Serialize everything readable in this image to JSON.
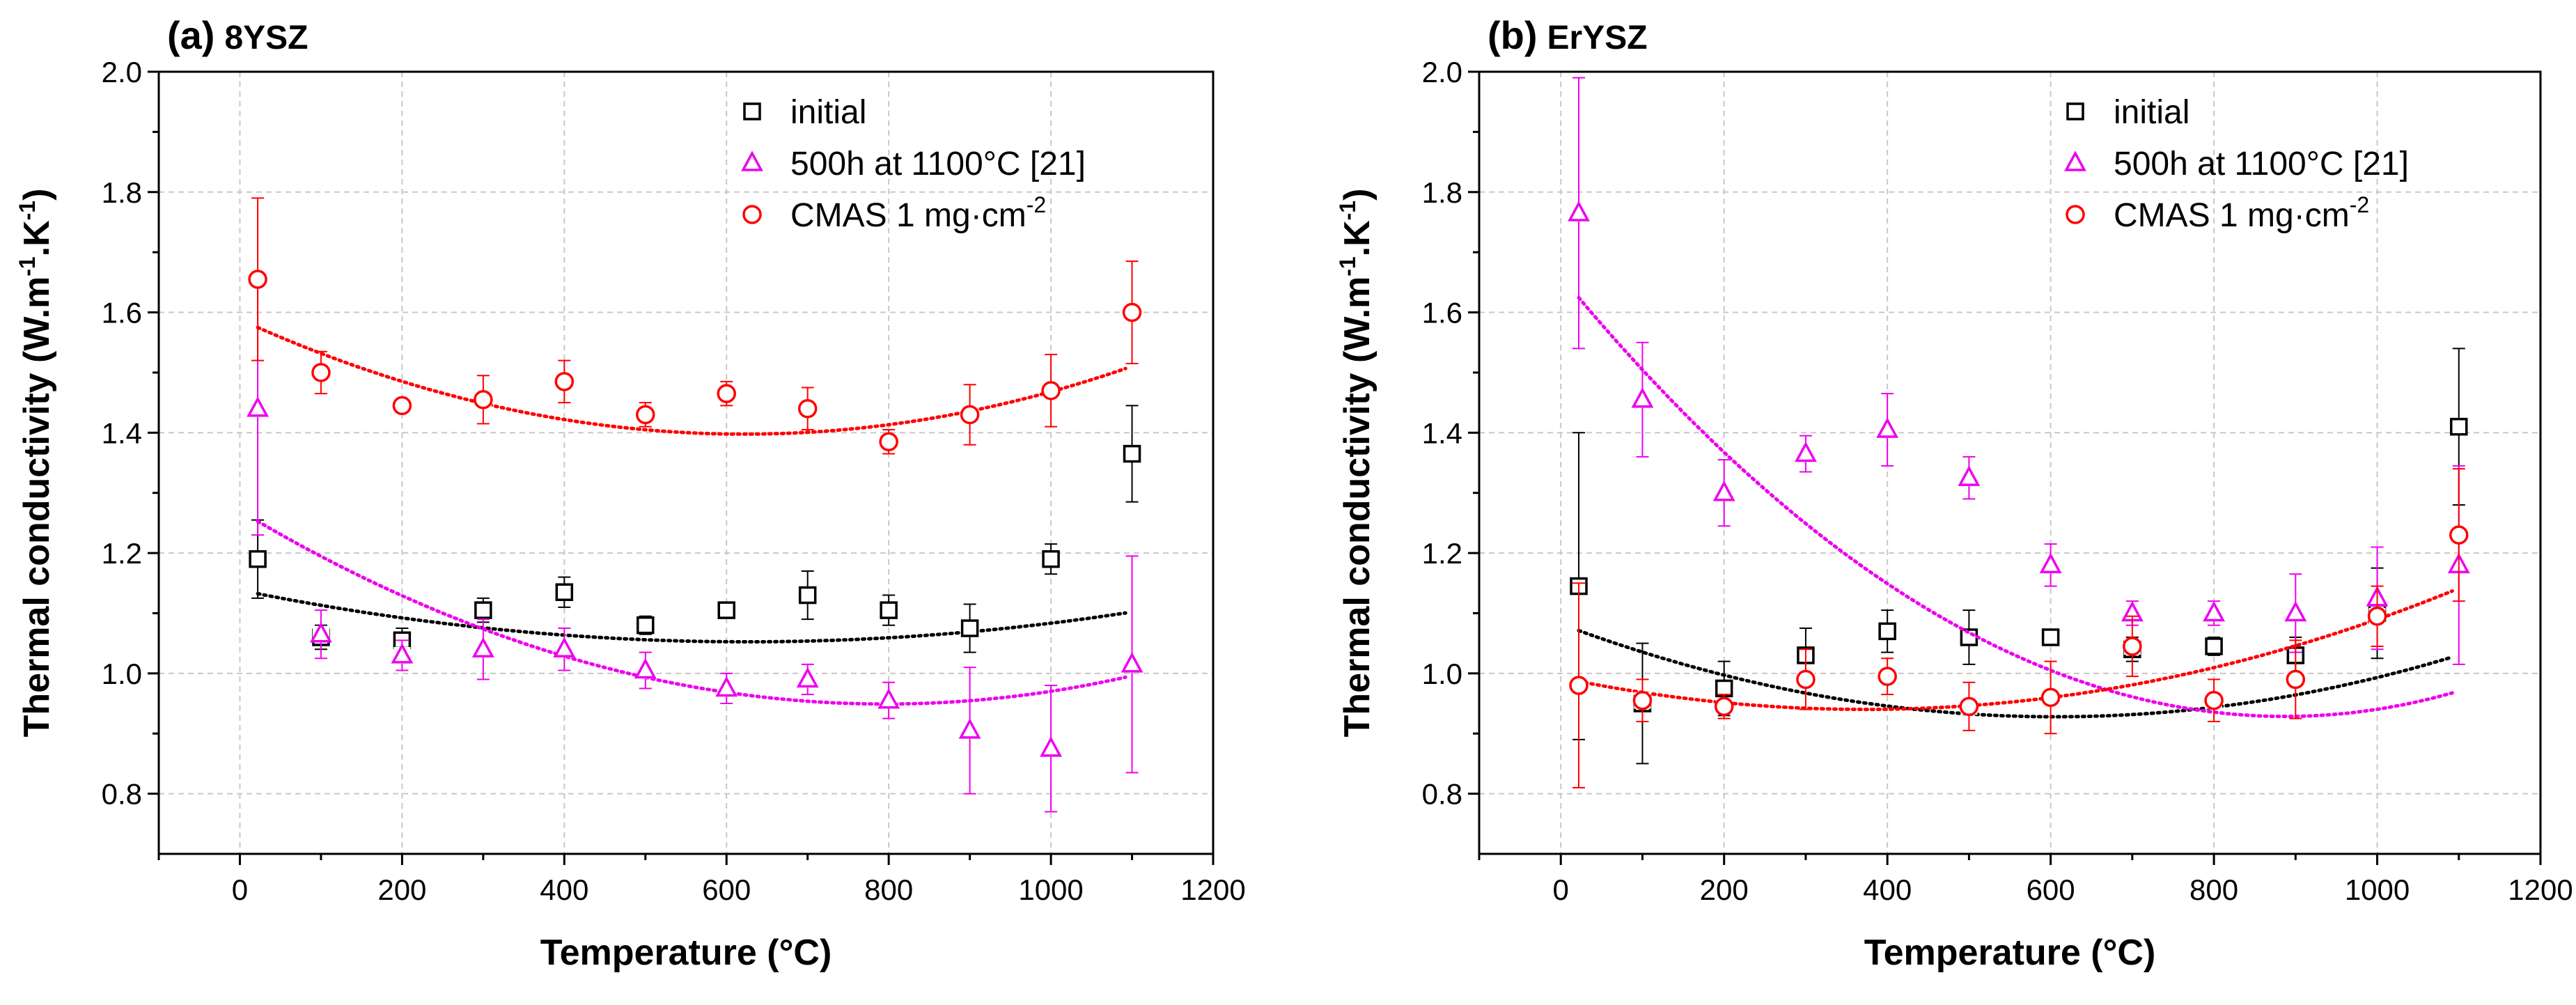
{
  "chart_data": [
    {
      "type": "scatter",
      "panel_label": "(a)",
      "title": "8YSZ",
      "xlabel": "Temperature (°C)",
      "ylabel_main": "Thermal conductivity (W.m",
      "ylabel_sup1": "-1",
      "ylabel_mid": ".K",
      "ylabel_sup2": "-1",
      "ylabel_end": ")",
      "xlim": [
        -100,
        1200
      ],
      "ylim": [
        0.7,
        2.0
      ],
      "xticks": [
        0,
        200,
        400,
        600,
        800,
        1000,
        1200
      ],
      "yticks": [
        0.8,
        1.0,
        1.2,
        1.4,
        1.6,
        1.8,
        2.0
      ],
      "grid": true,
      "legend_position": "top-right",
      "series": [
        {
          "name": "initial",
          "marker": "square",
          "color": "#000000",
          "x": [
            22,
            100,
            200,
            300,
            400,
            500,
            600,
            700,
            800,
            900,
            1000,
            1100
          ],
          "y": [
            1.19,
            1.06,
            1.055,
            1.105,
            1.135,
            1.08,
            1.105,
            1.13,
            1.105,
            1.075,
            1.19,
            1.365
          ],
          "err": [
            0.065,
            0.02,
            0.02,
            0.02,
            0.025,
            0.015,
            0.01,
            0.04,
            0.025,
            0.04,
            0.025,
            0.08
          ],
          "fit": [
            1.1384,
            -0.000275,
            2.2e-07
          ]
        },
        {
          "name": "500h at 1100°C [21]",
          "marker": "triangle",
          "color": "#ee00ee",
          "x": [
            22,
            100,
            200,
            300,
            400,
            500,
            600,
            700,
            800,
            900,
            1000,
            1100
          ],
          "y": [
            1.44,
            1.065,
            1.03,
            1.04,
            1.04,
            1.005,
            0.975,
            0.99,
            0.955,
            0.905,
            0.875,
            1.015
          ],
          "err": [
            0.21,
            0.04,
            0.025,
            0.05,
            0.035,
            0.03,
            0.025,
            0.025,
            0.03,
            0.105,
            0.105,
            0.18
          ],
          "fit": [
            1.2702,
            -0.000807,
            5.07e-07
          ]
        },
        {
          "name": "CMAS 1 mg·cm",
          "name_sup": "-2",
          "marker": "circle",
          "color": "#ff0000",
          "x": [
            22,
            100,
            200,
            300,
            400,
            500,
            600,
            700,
            800,
            900,
            1000,
            1100
          ],
          "y": [
            1.655,
            1.5,
            1.445,
            1.455,
            1.485,
            1.43,
            1.465,
            1.44,
            1.385,
            1.43,
            1.47,
            1.6
          ],
          "err": [
            0.135,
            0.035,
            0.01,
            0.04,
            0.035,
            0.02,
            0.02,
            0.035,
            0.02,
            0.05,
            0.06,
            0.085
          ],
          "fit": [
            1.5882,
            -0.000613,
            4.93e-07
          ]
        }
      ]
    },
    {
      "type": "scatter",
      "panel_label": "(b)",
      "title": "ErYSZ",
      "xlabel": "Temperature (°C)",
      "ylabel_main": "Thermal conductivity (W.m",
      "ylabel_sup1": "-1",
      "ylabel_mid": ".K",
      "ylabel_sup2": "-1",
      "ylabel_end": ")",
      "xlim": [
        -100,
        1200
      ],
      "ylim": [
        0.7,
        2.0
      ],
      "xticks": [
        0,
        200,
        400,
        600,
        800,
        1000,
        1200
      ],
      "yticks": [
        0.8,
        1.0,
        1.2,
        1.4,
        1.6,
        1.8,
        2.0
      ],
      "grid": true,
      "legend_position": "top-right",
      "series": [
        {
          "name": "initial",
          "marker": "square",
          "color": "#000000",
          "x": [
            22,
            100,
            200,
            300,
            400,
            500,
            600,
            700,
            800,
            900,
            1000,
            1100
          ],
          "y": [
            1.145,
            0.95,
            0.975,
            1.03,
            1.07,
            1.06,
            1.06,
            1.04,
            1.045,
            1.03,
            1.1,
            1.41
          ],
          "err": [
            0.255,
            0.1,
            0.045,
            0.045,
            0.035,
            0.045,
            0.01,
            0.02,
            0.015,
            0.03,
            0.075,
            0.13
          ],
          "fit": [
            1.0821,
            -0.000509,
            4.2e-07
          ]
        },
        {
          "name": "500h at 1100°C  [21]",
          "marker": "triangle",
          "color": "#ee00ee",
          "x": [
            22,
            100,
            200,
            300,
            400,
            500,
            600,
            700,
            800,
            900,
            1000,
            1100
          ],
          "y": [
            1.765,
            1.455,
            1.3,
            1.365,
            1.405,
            1.325,
            1.18,
            1.1,
            1.1,
            1.1,
            1.125,
            1.18
          ],
          "err": [
            0.225,
            0.095,
            0.055,
            0.03,
            0.06,
            0.035,
            0.035,
            0.02,
            0.02,
            0.065,
            0.085,
            0.165
          ],
          "fit": [
            1.6603,
            -0.00165,
            9.3e-07
          ]
        },
        {
          "name": "CMAS 1 mg·cm",
          "name_sup": "-2",
          "marker": "circle",
          "color": "#ff0000",
          "x": [
            22,
            100,
            200,
            300,
            400,
            500,
            600,
            700,
            800,
            900,
            1000,
            1100
          ],
          "y": [
            0.98,
            0.955,
            0.945,
            0.99,
            0.995,
            0.945,
            0.96,
            1.045,
            0.955,
            0.99,
            1.095,
            1.23
          ],
          "err": [
            0.17,
            0.035,
            0.02,
            0.05,
            0.03,
            0.04,
            0.06,
            0.05,
            0.035,
            0.065,
            0.05,
            0.11
          ],
          "fit": [
            0.9928,
            -0.000283,
            3.8e-07
          ]
        }
      ]
    }
  ]
}
